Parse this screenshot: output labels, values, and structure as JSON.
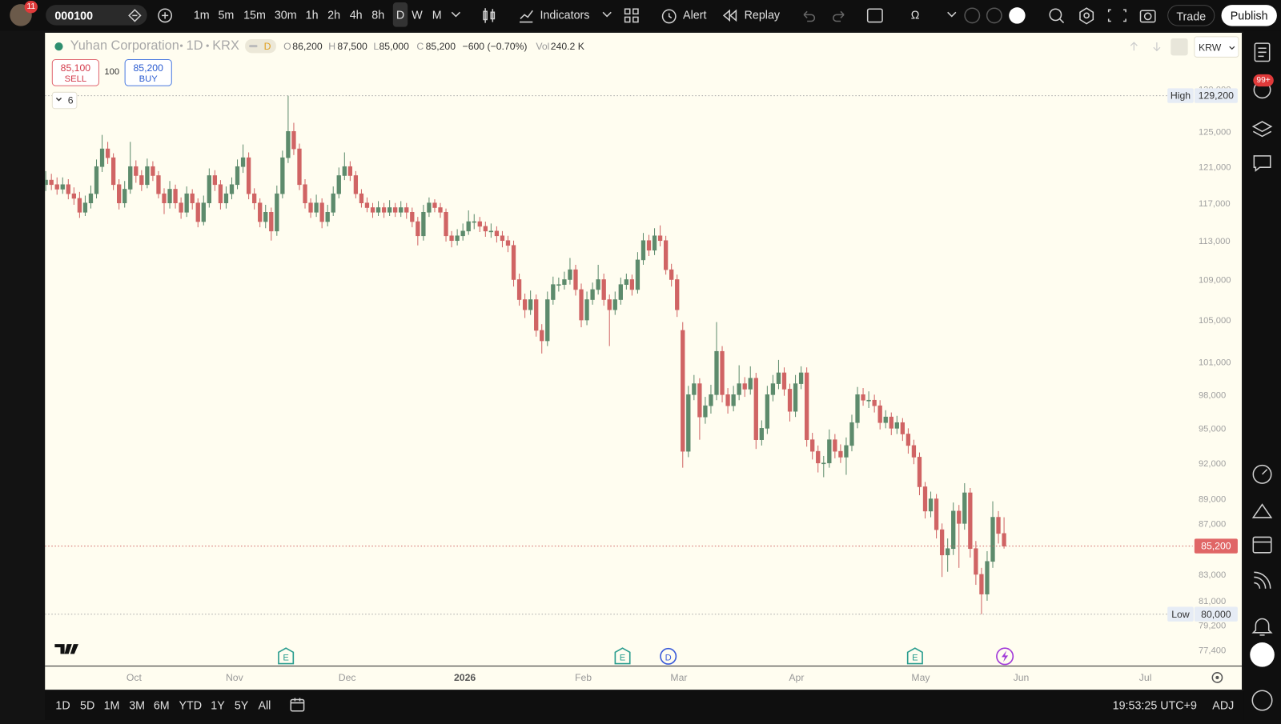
{
  "toolbar": {
    "symbol": "000100",
    "avatar_badge": "11",
    "intervals": [
      "1m",
      "5m",
      "15m",
      "30m",
      "1h",
      "2h",
      "4h",
      "8h",
      "D",
      "W",
      "M"
    ],
    "active_interval": 8,
    "indicators": "Indicators",
    "alert": "Alert",
    "replay": "Replay",
    "omega": "Ω",
    "trade": "Trade",
    "publish": "Publish"
  },
  "legend": {
    "name": "Yuhan Corporation",
    "interval": "1D",
    "exchange": "KRX",
    "badge": "D",
    "o_label": "O",
    "open": "86,200",
    "h_label": "H",
    "high": "87,500",
    "l_label": "L",
    "low": "85,000",
    "c_label": "C",
    "close": "85,200",
    "change": "−600 (−0.70%)",
    "vol_label": "Vol",
    "volume": "240.2 K"
  },
  "order": {
    "sell_price": "85,100",
    "sell": "SELL",
    "quantity": "100",
    "buy_price": "85,200",
    "buy": "BUY"
  },
  "indicator_count": "6",
  "currency": "KRW",
  "sidebar": {
    "badge": "99+"
  },
  "bottom": {
    "ranges": [
      "1D",
      "5D",
      "1M",
      "3M",
      "6M",
      "YTD",
      "1Y",
      "5Y",
      "All"
    ],
    "time": "19:53:25 UTC+9",
    "adj": "ADJ"
  },
  "chart_data": {
    "type": "candlestick",
    "up_color": "#5d8b6c",
    "down_color": "#d06464",
    "log_scale": true,
    "ylim": [
      76250,
      136950
    ],
    "yticks": [
      {
        "value": 130000,
        "label": "130,000"
      },
      {
        "value": 125000,
        "label": "125,000"
      },
      {
        "value": 121000,
        "label": "121,000"
      },
      {
        "value": 117000,
        "label": "117,000"
      },
      {
        "value": 113000,
        "label": "113,000"
      },
      {
        "value": 109000,
        "label": "109,000"
      },
      {
        "value": 105000,
        "label": "105,000"
      },
      {
        "value": 101000,
        "label": "101,000"
      },
      {
        "value": 98000,
        "label": "98,000"
      },
      {
        "value": 95000,
        "label": "95,000"
      },
      {
        "value": 92000,
        "label": "92,000"
      },
      {
        "value": 89000,
        "label": "89,000"
      },
      {
        "value": 87000,
        "label": "87,000"
      },
      {
        "value": 83000,
        "label": "83,000"
      },
      {
        "value": 81000,
        "label": "81,000"
      },
      {
        "value": 79200,
        "label": "79,200"
      },
      {
        "value": 77400,
        "label": "77,400"
      }
    ],
    "x_labels": [
      "Oct",
      "Nov",
      "Dec",
      "2026",
      "Feb",
      "Mar",
      "Apr",
      "May",
      "Jun",
      "Jul"
    ],
    "high": {
      "text": "High",
      "value": 129200,
      "label": "129,200"
    },
    "low": {
      "text": "Low",
      "value": 80000,
      "label": "80,000"
    },
    "last": {
      "value": 85200,
      "label": "85,200"
    },
    "events": [
      "E",
      "E",
      "D",
      "E"
    ],
    "candles": [
      [
        119000,
        120500,
        118300,
        119500
      ],
      [
        119500,
        120200,
        118400,
        119000
      ],
      [
        119000,
        119800,
        117900,
        118500
      ],
      [
        118500,
        119800,
        118000,
        119000
      ],
      [
        119000,
        119600,
        117400,
        118000
      ],
      [
        118000,
        118700,
        116800,
        117500
      ],
      [
        117500,
        118200,
        115400,
        116000
      ],
      [
        116000,
        117800,
        115600,
        117000
      ],
      [
        117000,
        118900,
        116400,
        118000
      ],
      [
        118000,
        121800,
        117500,
        121000
      ],
      [
        121000,
        124600,
        120400,
        123000
      ],
      [
        123000,
        123800,
        121300,
        122000
      ],
      [
        122000,
        122500,
        118400,
        119000
      ],
      [
        119000,
        119600,
        116300,
        117000
      ],
      [
        117000,
        119400,
        116500,
        118500
      ],
      [
        118500,
        123800,
        118000,
        121000
      ],
      [
        121000,
        121700,
        119200,
        120000
      ],
      [
        120000,
        120600,
        118300,
        119000
      ],
      [
        119000,
        121900,
        118600,
        121000
      ],
      [
        121000,
        121600,
        119400,
        120000
      ],
      [
        120000,
        120500,
        117500,
        118000
      ],
      [
        118000,
        118600,
        115800,
        117000
      ],
      [
        117000,
        119400,
        116400,
        118500
      ],
      [
        118500,
        119000,
        116400,
        117000
      ],
      [
        117000,
        117600,
        115300,
        116000
      ],
      [
        116000,
        118800,
        115500,
        118000
      ],
      [
        118000,
        118500,
        116300,
        117000
      ],
      [
        117000,
        117500,
        114400,
        115000
      ],
      [
        115000,
        117800,
        114600,
        117000
      ],
      [
        117000,
        120800,
        116500,
        120000
      ],
      [
        120000,
        120600,
        118300,
        119000
      ],
      [
        119000,
        119500,
        116300,
        117000
      ],
      [
        117000,
        118800,
        116400,
        118000
      ],
      [
        118000,
        119800,
        117400,
        119000
      ],
      [
        119000,
        121800,
        118500,
        121000
      ],
      [
        121000,
        123500,
        120300,
        122000
      ],
      [
        122000,
        122600,
        117400,
        118000
      ],
      [
        118000,
        118600,
        116300,
        117000
      ],
      [
        117000,
        117500,
        114400,
        115000
      ],
      [
        115000,
        116800,
        114300,
        116000
      ],
      [
        116000,
        116500,
        113000,
        114000
      ],
      [
        114000,
        118900,
        113500,
        118000
      ],
      [
        118000,
        122800,
        117500,
        122000
      ],
      [
        122000,
        129200,
        121400,
        125000
      ],
      [
        125000,
        126000,
        122300,
        123000
      ],
      [
        123000,
        123600,
        118400,
        119000
      ],
      [
        119000,
        119600,
        116400,
        117000
      ],
      [
        117000,
        117500,
        115400,
        116000
      ],
      [
        116000,
        117900,
        115500,
        117000
      ],
      [
        117000,
        117500,
        114300,
        115000
      ],
      [
        115000,
        116800,
        114500,
        116000
      ],
      [
        116000,
        118800,
        115600,
        118000
      ],
      [
        118000,
        120900,
        117500,
        120000
      ],
      [
        120000,
        122600,
        119500,
        121000
      ],
      [
        121000,
        121600,
        119400,
        120000
      ],
      [
        120000,
        120500,
        117500,
        118000
      ],
      [
        118000,
        118500,
        116500,
        117000
      ],
      [
        117000,
        117600,
        116000,
        116500
      ],
      [
        116500,
        117000,
        115400,
        116000
      ],
      [
        116000,
        117200,
        115600,
        116500
      ],
      [
        116500,
        117000,
        115400,
        116000
      ],
      [
        116000,
        117300,
        115600,
        116500
      ],
      [
        116500,
        117000,
        115500,
        116000
      ],
      [
        116000,
        117200,
        115500,
        116500
      ],
      [
        116500,
        117000,
        115300,
        116000
      ],
      [
        116000,
        116500,
        114400,
        115000
      ],
      [
        115000,
        115500,
        112500,
        113500
      ],
      [
        113500,
        116800,
        113000,
        116000
      ],
      [
        116000,
        117600,
        115500,
        117000
      ],
      [
        117000,
        117400,
        116000,
        116500
      ],
      [
        116500,
        117000,
        115400,
        116000
      ],
      [
        116000,
        116400,
        112900,
        113500
      ],
      [
        113500,
        114000,
        112300,
        113000
      ],
      [
        113000,
        114200,
        112500,
        113500
      ],
      [
        113500,
        114800,
        113000,
        114000
      ],
      [
        114000,
        116200,
        113600,
        115000
      ],
      [
        115000,
        115800,
        114200,
        115000
      ],
      [
        115000,
        115500,
        113900,
        114500
      ],
      [
        114500,
        115000,
        113400,
        114000
      ],
      [
        114000,
        114800,
        113300,
        114000
      ],
      [
        114000,
        114500,
        112800,
        113500
      ],
      [
        113500,
        114000,
        112300,
        113000
      ],
      [
        113000,
        113500,
        111800,
        112500
      ],
      [
        112500,
        113000,
        108300,
        109000
      ],
      [
        109000,
        109600,
        106400,
        107000
      ],
      [
        107000,
        107600,
        105200,
        106000
      ],
      [
        106000,
        107900,
        105500,
        107000
      ],
      [
        107000,
        107500,
        103400,
        104000
      ],
      [
        104000,
        104600,
        101800,
        103000
      ],
      [
        103000,
        107800,
        102500,
        107000
      ],
      [
        107000,
        109300,
        106500,
        108500
      ],
      [
        108500,
        109200,
        107800,
        108500
      ],
      [
        108500,
        109800,
        108000,
        109000
      ],
      [
        109000,
        111200,
        108500,
        110000
      ],
      [
        110000,
        110500,
        107400,
        108000
      ],
      [
        108000,
        108600,
        104300,
        105000
      ],
      [
        105000,
        107800,
        104500,
        107000
      ],
      [
        107000,
        108700,
        106500,
        108000
      ],
      [
        108000,
        110500,
        107500,
        109000
      ],
      [
        109000,
        109600,
        106400,
        107000
      ],
      [
        107000,
        107500,
        102500,
        106000
      ],
      [
        106000,
        107800,
        105500,
        107000
      ],
      [
        107000,
        109200,
        106500,
        108500
      ],
      [
        108500,
        109600,
        108000,
        109000
      ],
      [
        109000,
        109500,
        107400,
        108000
      ],
      [
        108000,
        111800,
        107600,
        111000
      ],
      [
        111000,
        113800,
        110500,
        113000
      ],
      [
        113000,
        113600,
        111400,
        112000
      ],
      [
        112000,
        114300,
        111500,
        113500
      ],
      [
        113500,
        114600,
        112400,
        113000
      ],
      [
        113000,
        113500,
        109500,
        110000
      ],
      [
        110000,
        110600,
        108300,
        109000
      ],
      [
        109000,
        109500,
        105300,
        106000
      ],
      [
        104000,
        104800,
        91600,
        93000
      ],
      [
        93000,
        98800,
        92500,
        98000
      ],
      [
        98000,
        99800,
        97500,
        99000
      ],
      [
        99000,
        99500,
        94000,
        96000
      ],
      [
        96000,
        97800,
        95400,
        97000
      ],
      [
        97000,
        98900,
        96300,
        98000
      ],
      [
        98000,
        104800,
        97500,
        102000
      ],
      [
        102000,
        102500,
        97300,
        98000
      ],
      [
        98000,
        98600,
        96300,
        97000
      ],
      [
        97000,
        98800,
        96500,
        98000
      ],
      [
        98000,
        100700,
        97500,
        99000
      ],
      [
        99000,
        99600,
        97800,
        98500
      ],
      [
        98500,
        100600,
        98000,
        99500
      ],
      [
        99500,
        100000,
        93200,
        94000
      ],
      [
        94000,
        95700,
        93500,
        95000
      ],
      [
        95000,
        98800,
        94500,
        98000
      ],
      [
        98000,
        99800,
        97400,
        99000
      ],
      [
        99000,
        101200,
        98500,
        100000
      ],
      [
        100000,
        100500,
        97900,
        98500
      ],
      [
        98500,
        99000,
        95600,
        96500
      ],
      [
        96500,
        99800,
        96000,
        99000
      ],
      [
        99000,
        100600,
        98500,
        100000
      ],
      [
        100000,
        100500,
        93400,
        94000
      ],
      [
        94000,
        94600,
        92300,
        93000
      ],
      [
        93000,
        93500,
        91200,
        92000
      ],
      [
        92000,
        92600,
        90800,
        92000
      ],
      [
        92000,
        94900,
        91600,
        94000
      ],
      [
        94000,
        94500,
        92400,
        93000
      ],
      [
        93000,
        93600,
        92000,
        92500
      ],
      [
        92500,
        94200,
        91000,
        93500
      ],
      [
        93500,
        96200,
        93000,
        95500
      ],
      [
        95500,
        98700,
        95000,
        98000
      ],
      [
        98000,
        98600,
        97000,
        97500
      ],
      [
        97500,
        98300,
        96800,
        97500
      ],
      [
        97500,
        98000,
        96400,
        97000
      ],
      [
        97000,
        97500,
        94900,
        95500
      ],
      [
        95500,
        96600,
        95000,
        96000
      ],
      [
        96000,
        96400,
        94400,
        95000
      ],
      [
        95000,
        96100,
        94500,
        95500
      ],
      [
        95500,
        95900,
        93900,
        94500
      ],
      [
        94500,
        95000,
        92800,
        93500
      ],
      [
        93500,
        94000,
        91900,
        92500
      ],
      [
        92500,
        92900,
        89300,
        90000
      ],
      [
        90000,
        90400,
        87400,
        88000
      ],
      [
        88000,
        89600,
        87500,
        89000
      ],
      [
        89000,
        89400,
        85800,
        86500
      ],
      [
        86500,
        87000,
        82800,
        84500
      ],
      [
        84500,
        85800,
        83200,
        85000
      ],
      [
        85000,
        88700,
        84500,
        88000
      ],
      [
        88000,
        88500,
        83500,
        87000
      ],
      [
        87000,
        90300,
        86500,
        89500
      ],
      [
        89500,
        89900,
        84300,
        85000
      ],
      [
        85000,
        85600,
        82200,
        83000
      ],
      [
        83000,
        83500,
        80000,
        81500
      ],
      [
        81500,
        84800,
        81000,
        84000
      ],
      [
        84000,
        88800,
        83500,
        87500
      ],
      [
        87500,
        88000,
        85400,
        86200
      ],
      [
        86200,
        87500,
        85000,
        85200
      ]
    ]
  }
}
